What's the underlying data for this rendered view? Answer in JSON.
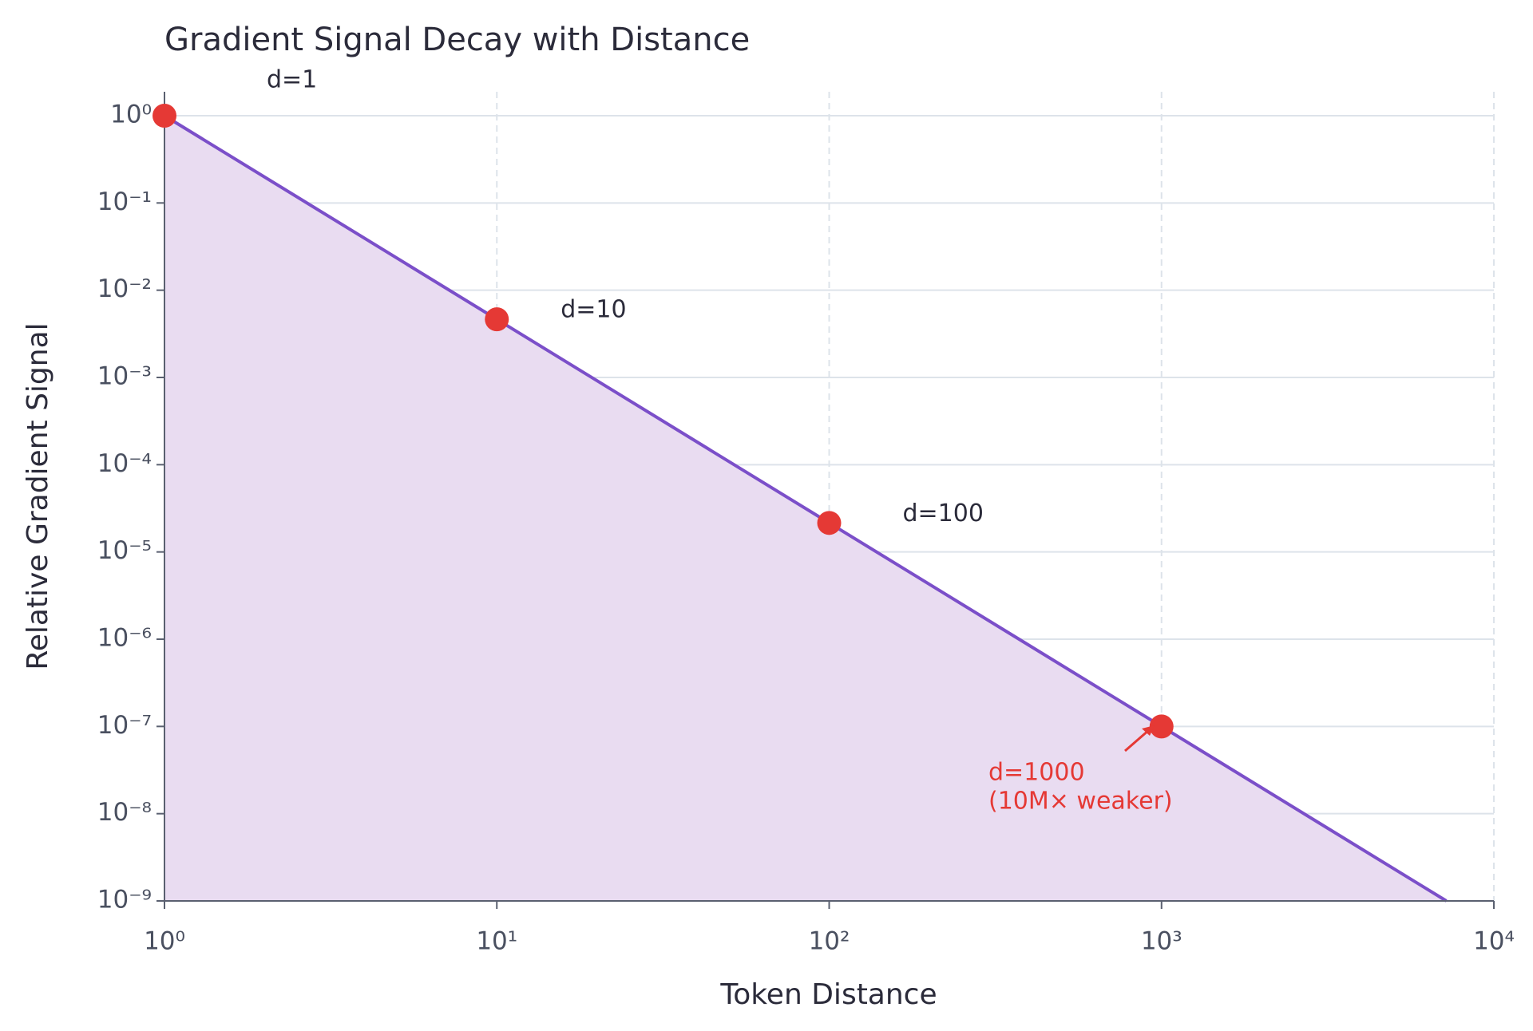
{
  "chart_data": {
    "type": "line",
    "title": "Gradient Signal Decay with Distance",
    "x_label": "Token Distance",
    "y_label": "Relative Gradient Signal",
    "x": [
      1,
      10,
      100,
      1000,
      7197
    ],
    "values": [
      1,
      0.00464,
      2.15e-05,
      1e-07,
      1e-09
    ],
    "color": "#7b4fc9",
    "fill_color": "#e9dcf1",
    "points": {
      "x": [
        1,
        10,
        100,
        1000
      ],
      "values": [
        1,
        0.00464,
        2.15e-05,
        1e-07
      ],
      "color": "#e53935",
      "labels": [
        "d=1",
        "d=10",
        "d=100"
      ]
    },
    "annotation": {
      "text": [
        "d=1000",
        "(10M× weaker)"
      ],
      "color": "#e53935"
    },
    "xscale": "log",
    "yscale": "log",
    "grid": true,
    "xlim": [
      1,
      10000
    ],
    "ylim": [
      1e-09,
      1
    ],
    "xticks": [
      {
        "value": 1,
        "label": "10⁰"
      },
      {
        "value": 10,
        "label": "10¹"
      },
      {
        "value": 100,
        "label": "10²"
      },
      {
        "value": 1000,
        "label": "10³"
      },
      {
        "value": 10000,
        "label": "10⁴"
      }
    ],
    "yticks": [
      {
        "value": 1,
        "label": "10⁰"
      },
      {
        "value": 0.1,
        "label": "10⁻¹"
      },
      {
        "value": 0.01,
        "label": "10⁻²"
      },
      {
        "value": 0.001,
        "label": "10⁻³"
      },
      {
        "value": 0.0001,
        "label": "10⁻⁴"
      },
      {
        "value": 1e-05,
        "label": "10⁻⁵"
      },
      {
        "value": 1e-06,
        "label": "10⁻⁶"
      },
      {
        "value": 1e-07,
        "label": "10⁻⁷"
      },
      {
        "value": 1e-08,
        "label": "10⁻⁸"
      },
      {
        "value": 1e-09,
        "label": "10⁻⁹"
      }
    ]
  }
}
